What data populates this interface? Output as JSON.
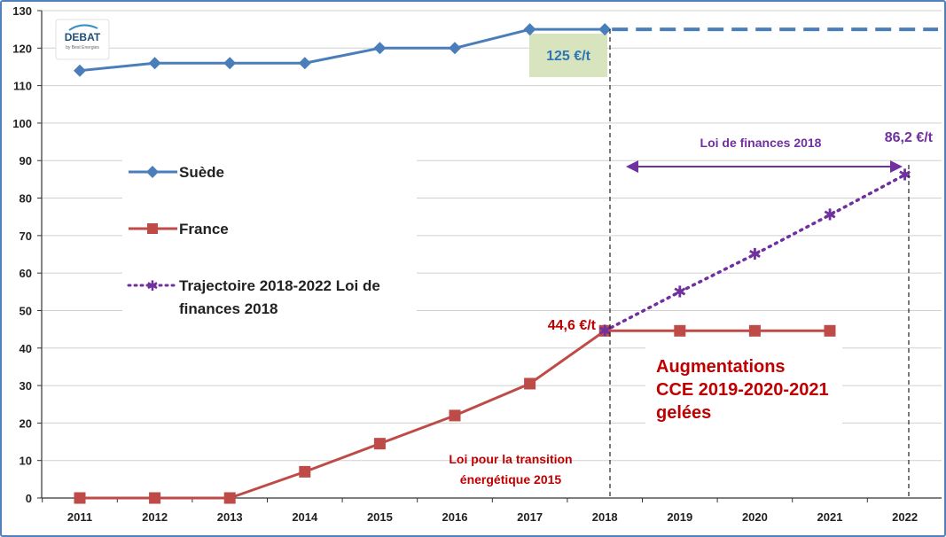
{
  "logo": {
    "text": "DEBAT",
    "subtext": "by Best Energies"
  },
  "chart_data": {
    "type": "line",
    "x": [
      "2011",
      "2012",
      "2013",
      "2014",
      "2015",
      "2016",
      "2017",
      "2018",
      "2019",
      "2020",
      "2021",
      "2022"
    ],
    "ylim": [
      0,
      130
    ],
    "yticks": [
      "0",
      "10",
      "20",
      "30",
      "40",
      "50",
      "60",
      "70",
      "80",
      "90",
      "100",
      "110",
      "120",
      "130"
    ],
    "grid": true,
    "legend_position": "left-center",
    "series": [
      {
        "name": "Suède",
        "color": "#4a7ebb",
        "marker": "diamond",
        "x": [
          "2011",
          "2012",
          "2013",
          "2014",
          "2015",
          "2016",
          "2017",
          "2018"
        ],
        "values": [
          114,
          116,
          116,
          116,
          120,
          120,
          125,
          125
        ],
        "extension": {
          "style": "dashed",
          "value": 125
        }
      },
      {
        "name": "France",
        "color": "#be4b48",
        "marker": "square",
        "x": [
          "2011",
          "2012",
          "2013",
          "2014",
          "2015",
          "2016",
          "2017",
          "2018",
          "2019",
          "2020",
          "2021"
        ],
        "values": [
          0,
          0,
          0,
          7,
          14.5,
          22,
          30.5,
          44.6,
          44.6,
          44.6,
          44.6
        ]
      },
      {
        "name": "Trajectoire 2018-2022 Loi de finances 2018",
        "name_line1": "Trajectoire 2018-2022 Loi de",
        "name_line2": "finances 2018",
        "color": "#7030a0",
        "marker": "star",
        "style": "dotted",
        "x": [
          "2018",
          "2019",
          "2020",
          "2021",
          "2022"
        ],
        "values": [
          44.6,
          55,
          65,
          75.5,
          86.2
        ]
      }
    ],
    "annotations": {
      "sweden_value": "125 €/t",
      "france_value": "44,6 €/t",
      "trajectory_value": "86,2 €/t",
      "loi_finances": "Loi de finances 2018",
      "augmentations": [
        "Augmentations",
        "CCE 2019-2020-2021",
        "gelées"
      ],
      "loi_transition": [
        "Loi pour la transition",
        "énergétique 2015"
      ]
    },
    "colors": {
      "grid": "#d0d0d0",
      "axis": "#333333",
      "note_box": "#d7e4bd",
      "note_text": "#2e75b6",
      "red_text": "#c00000",
      "purple_text": "#7030a0"
    }
  }
}
